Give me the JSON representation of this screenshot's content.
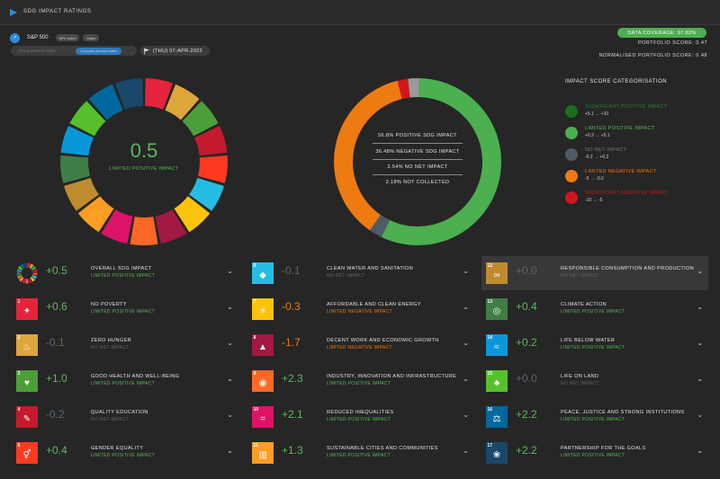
{
  "app": {
    "title": "SDG IMPACT RATINGS"
  },
  "portfolio": {
    "name": "S&P 500",
    "tags": [
      "SPX Index",
      "Index"
    ]
  },
  "dates": {
    "start": "(THU) 10-MAR-2022",
    "chip": "Compare Across Dates",
    "end": "(THU) 07-APR-2022"
  },
  "summary": {
    "coverage": "DATA COVERAGE: 97.82%",
    "portfolio_score": "PORTFOLIO SCORE: 0.47",
    "normalised_score": "NORMALISED PORTFOLIO SCORE: 0.48"
  },
  "overall": {
    "value": "0.5",
    "label": "LIMITED POSITIVE IMPACT"
  },
  "breakdown": {
    "segments": [
      {
        "name": "positive",
        "percent": 56.8,
        "color": "#4caf50"
      },
      {
        "name": "no_net",
        "percent": 2.54,
        "color": "#4f5b66"
      },
      {
        "name": "negative",
        "percent": 36.48,
        "color": "#ee7a12"
      },
      {
        "name": "high_negative",
        "percent": 2.0,
        "color": "#d0161d"
      },
      {
        "name": "not_collected",
        "percent": 2.18,
        "color": "#9a9a9a"
      }
    ],
    "lines": [
      "56.8% POSITIVE SDG IMPACT",
      "36.48% NEGATIVE SDG IMPACT",
      "2.54% NO NET IMPACT",
      "2.18% NOT COLLECTED"
    ]
  },
  "legend": {
    "title": "IMPACT SCORE CATEGORISATION",
    "items": [
      {
        "name": "SIGNIFICANT POSITIVE IMPACT",
        "range": "+5.1 → +10",
        "color": "#1e6d1e",
        "name_color": "#2e7d32"
      },
      {
        "name": "LIMITED POSITIVE IMPACT",
        "range": "+0.2 → +5.1",
        "color": "#4caf50",
        "name_color": "#5cb85c"
      },
      {
        "name": "NO NET IMPACT",
        "range": "-0.2 → +0.2",
        "color": "#4f5b66",
        "name_color": "#6c7883"
      },
      {
        "name": "LIMITED NEGATIVE IMPACT",
        "range": "-5 → -0.2",
        "color": "#ee7a12",
        "name_color": "#ee7a12"
      },
      {
        "name": "SIGNIFICANT NEGATIVE IMPACT",
        "range": "-10 → -5",
        "color": "#d0161d",
        "name_color": "#d0161d"
      }
    ]
  },
  "categories": {
    "LPI": {
      "label": "LIMITED POSITIVE IMPACT",
      "color": "#5cb85c"
    },
    "LNI": {
      "label": "LIMITED NEGATIVE IMPACT",
      "color": "#ee7a12"
    },
    "NNI": {
      "label": "NO NET IMPACT",
      "color": "#5b6670"
    }
  },
  "sdgs": [
    {
      "num": "",
      "name": "OVERALL SDG IMPACT",
      "score": "+0.5",
      "cat": "LPI",
      "tile_color": "wheel",
      "glyph": ""
    },
    {
      "num": "1",
      "name": "NO POVERTY",
      "score": "+0.6",
      "cat": "LPI",
      "tile_color": "#e5243b",
      "glyph": "✦"
    },
    {
      "num": "2",
      "name": "ZERO HUNGER",
      "score": "-0.1",
      "cat": "NNI",
      "tile_color": "#dda63a",
      "glyph": "♨"
    },
    {
      "num": "3",
      "name": "GOOD HEALTH AND WELL-BEING",
      "score": "+1.0",
      "cat": "LPI",
      "tile_color": "#4c9f38",
      "glyph": "♥"
    },
    {
      "num": "4",
      "name": "QUALITY EDUCATION",
      "score": "-0.2",
      "cat": "NNI",
      "tile_color": "#c5192d",
      "glyph": "✎"
    },
    {
      "num": "5",
      "name": "GENDER EQUALITY",
      "score": "+0.4",
      "cat": "LPI",
      "tile_color": "#ff3a21",
      "glyph": "⚥"
    },
    {
      "num": "6",
      "name": "CLEAN WATER AND SANITATION",
      "score": "-0.1",
      "cat": "NNI",
      "tile_color": "#26bde2",
      "glyph": "◆"
    },
    {
      "num": "7",
      "name": "AFFORDABLE AND CLEAN ENERGY",
      "score": "-0.3",
      "cat": "LNI",
      "tile_color": "#fcc30b",
      "glyph": "☀"
    },
    {
      "num": "8",
      "name": "DECENT WORK AND ECONOMIC GROWTH",
      "score": "-1.7",
      "cat": "LNI",
      "tile_color": "#a21942",
      "glyph": "▲"
    },
    {
      "num": "9",
      "name": "INDUSTRY, INNOVATION AND INFRASTRUCTURE",
      "score": "+2.3",
      "cat": "LPI",
      "tile_color": "#fd6925",
      "glyph": "◉"
    },
    {
      "num": "10",
      "name": "REDUCED INEQUALITIES",
      "score": "+2.1",
      "cat": "LPI",
      "tile_color": "#dd1367",
      "glyph": "="
    },
    {
      "num": "11",
      "name": "SUSTAINABLE CITIES AND COMMUNITIES",
      "score": "+1.3",
      "cat": "LPI",
      "tile_color": "#fd9d24",
      "glyph": "▥"
    },
    {
      "num": "12",
      "name": "RESPONSIBLE CONSUMPTION AND PRODUCTION",
      "score": "+0.0",
      "cat": "NNI",
      "tile_color": "#bf8b2e",
      "glyph": "∞"
    },
    {
      "num": "13",
      "name": "CLIMATE ACTION",
      "score": "+0.4",
      "cat": "LPI",
      "tile_color": "#3f7e44",
      "glyph": "◎"
    },
    {
      "num": "14",
      "name": "LIFE BELOW WATER",
      "score": "+0.2",
      "cat": "LPI",
      "tile_color": "#0a97d9",
      "glyph": "≈"
    },
    {
      "num": "15",
      "name": "LIFE ON LAND",
      "score": "+0.0",
      "cat": "NNI",
      "tile_color": "#56c02b",
      "glyph": "♣"
    },
    {
      "num": "16",
      "name": "PEACE, JUSTICE AND STRONG INSTITUTIONS",
      "score": "+2.2",
      "cat": "LPI",
      "tile_color": "#00689d",
      "glyph": "⚖"
    },
    {
      "num": "17",
      "name": "PARTNERSHIP FOR THE GOALS",
      "score": "+2.2",
      "cat": "LPI",
      "tile_color": "#19486a",
      "glyph": "❀"
    }
  ],
  "wheel_colors": [
    "#e5243b",
    "#dda63a",
    "#4c9f38",
    "#c5192d",
    "#ff3a21",
    "#26bde2",
    "#fcc30b",
    "#a21942",
    "#fd6925",
    "#dd1367",
    "#fd9d24",
    "#bf8b2e",
    "#3f7e44",
    "#0a97d9",
    "#56c02b",
    "#00689d",
    "#19486a"
  ],
  "icons": {
    "logo": "play-logo-icon",
    "portfolio": "chart-up-icon",
    "flag": "flag-icon",
    "chevron": "chevron-down-icon"
  }
}
